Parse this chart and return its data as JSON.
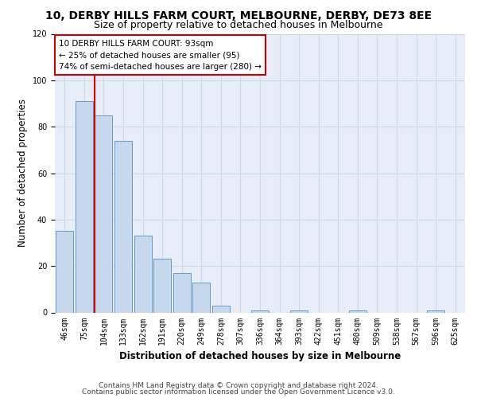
{
  "title": "10, DERBY HILLS FARM COURT, MELBOURNE, DERBY, DE73 8EE",
  "subtitle": "Size of property relative to detached houses in Melbourne",
  "xlabel": "Distribution of detached houses by size in Melbourne",
  "ylabel": "Number of detached properties",
  "bar_labels": [
    "46sqm",
    "75sqm",
    "104sqm",
    "133sqm",
    "162sqm",
    "191sqm",
    "220sqm",
    "249sqm",
    "278sqm",
    "307sqm",
    "336sqm",
    "364sqm",
    "393sqm",
    "422sqm",
    "451sqm",
    "480sqm",
    "509sqm",
    "538sqm",
    "567sqm",
    "596sqm",
    "625sqm"
  ],
  "bar_values": [
    35,
    91,
    85,
    74,
    33,
    23,
    17,
    13,
    3,
    0,
    1,
    0,
    1,
    0,
    0,
    1,
    0,
    0,
    0,
    1,
    0
  ],
  "bar_color": "#c5d8ed",
  "bar_edge_color": "#6699cc",
  "vline_color": "#dd0000",
  "annotation_line1": "10 DERBY HILLS FARM COURT: 93sqm",
  "annotation_line2": "← 25% of detached houses are smaller (95)",
  "annotation_line3": "74% of semi-detached houses are larger (280) →",
  "annotation_box_edge_color": "#cc0000",
  "ylim": [
    0,
    120
  ],
  "yticks": [
    0,
    20,
    40,
    60,
    80,
    100,
    120
  ],
  "grid_color": "#d0d8e8",
  "background_color": "#e8eef8",
  "footer_line1": "Contains HM Land Registry data © Crown copyright and database right 2024.",
  "footer_line2": "Contains public sector information licensed under the Open Government Licence v3.0.",
  "title_fontsize": 10,
  "subtitle_fontsize": 9,
  "axis_label_fontsize": 8.5,
  "tick_fontsize": 7,
  "annotation_fontsize": 7.5,
  "footer_fontsize": 6.5
}
